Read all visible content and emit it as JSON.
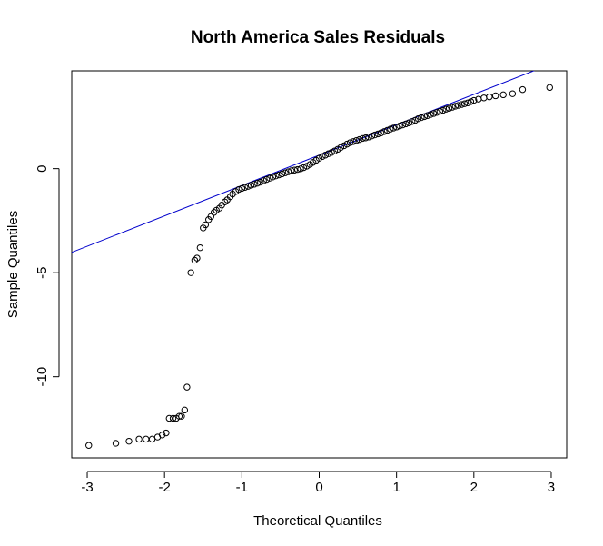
{
  "chart_data": {
    "type": "scatter",
    "title": "North America Sales Residuals",
    "xlabel": "Theoretical Quantiles",
    "ylabel": "Sample Quantiles",
    "xlim": [
      -3.2,
      3.2
    ],
    "ylim": [
      -13.9,
      4.7
    ],
    "x_ticks": [
      -3,
      -2,
      -1,
      0,
      1,
      2,
      3
    ],
    "y_ticks": [
      -10,
      -5,
      0
    ],
    "grid": false,
    "colors": {
      "points": "#000000",
      "reference_line": "#0000cc",
      "frame": "#000000"
    },
    "reference_line": {
      "slope": 1.46,
      "intercept": 0.65
    },
    "series": [
      {
        "values": [
          [
            -2.98,
            -13.3
          ],
          [
            -2.63,
            -13.2
          ],
          [
            -2.46,
            -13.1
          ],
          [
            -2.33,
            -13.0
          ],
          [
            -2.24,
            -13.0
          ],
          [
            -2.16,
            -13.0
          ],
          [
            -2.09,
            -12.9
          ],
          [
            -2.03,
            -12.8
          ],
          [
            -1.98,
            -12.7
          ],
          [
            -1.94,
            -12.0
          ],
          [
            -1.89,
            -12.0
          ],
          [
            -1.85,
            -12.0
          ],
          [
            -1.81,
            -11.9
          ],
          [
            -1.78,
            -11.9
          ],
          [
            -1.74,
            -11.6
          ],
          [
            -1.71,
            -10.5
          ],
          [
            -1.66,
            -5.0
          ],
          [
            -1.61,
            -4.4
          ],
          [
            -1.58,
            -4.3
          ],
          [
            -1.54,
            -3.8
          ],
          [
            -1.5,
            -2.85
          ],
          [
            -1.47,
            -2.7
          ],
          [
            -1.43,
            -2.45
          ],
          [
            -1.4,
            -2.3
          ],
          [
            -1.36,
            -2.1
          ],
          [
            -1.33,
            -2.0
          ],
          [
            -1.29,
            -1.9
          ],
          [
            -1.26,
            -1.75
          ],
          [
            -1.22,
            -1.6
          ],
          [
            -1.19,
            -1.5
          ],
          [
            -1.15,
            -1.35
          ],
          [
            -1.12,
            -1.22
          ],
          [
            -1.08,
            -1.1
          ],
          [
            -1.04,
            -1.0
          ],
          [
            -1.0,
            -0.95
          ],
          [
            -0.96,
            -0.9
          ],
          [
            -0.92,
            -0.85
          ],
          [
            -0.88,
            -0.8
          ],
          [
            -0.84,
            -0.75
          ],
          [
            -0.8,
            -0.7
          ],
          [
            -0.76,
            -0.65
          ],
          [
            -0.72,
            -0.58
          ],
          [
            -0.68,
            -0.52
          ],
          [
            -0.64,
            -0.46
          ],
          [
            -0.6,
            -0.4
          ],
          [
            -0.56,
            -0.35
          ],
          [
            -0.52,
            -0.3
          ],
          [
            -0.48,
            -0.25
          ],
          [
            -0.44,
            -0.2
          ],
          [
            -0.4,
            -0.15
          ],
          [
            -0.36,
            -0.1
          ],
          [
            -0.32,
            -0.07
          ],
          [
            -0.28,
            -0.04
          ],
          [
            -0.24,
            -0.01
          ],
          [
            -0.2,
            0.05
          ],
          [
            -0.16,
            0.12
          ],
          [
            -0.12,
            0.2
          ],
          [
            -0.08,
            0.3
          ],
          [
            -0.04,
            0.4
          ],
          [
            0.0,
            0.5
          ],
          [
            0.04,
            0.58
          ],
          [
            0.08,
            0.65
          ],
          [
            0.12,
            0.72
          ],
          [
            0.16,
            0.78
          ],
          [
            0.2,
            0.85
          ],
          [
            0.24,
            0.93
          ],
          [
            0.28,
            1.02
          ],
          [
            0.32,
            1.1
          ],
          [
            0.36,
            1.18
          ],
          [
            0.4,
            1.25
          ],
          [
            0.44,
            1.3
          ],
          [
            0.48,
            1.35
          ],
          [
            0.52,
            1.4
          ],
          [
            0.56,
            1.45
          ],
          [
            0.6,
            1.48
          ],
          [
            0.64,
            1.52
          ],
          [
            0.68,
            1.57
          ],
          [
            0.72,
            1.62
          ],
          [
            0.76,
            1.67
          ],
          [
            0.8,
            1.72
          ],
          [
            0.84,
            1.78
          ],
          [
            0.88,
            1.84
          ],
          [
            0.92,
            1.9
          ],
          [
            0.96,
            1.95
          ],
          [
            1.0,
            2.0
          ],
          [
            1.04,
            2.05
          ],
          [
            1.08,
            2.1
          ],
          [
            1.12,
            2.15
          ],
          [
            1.16,
            2.2
          ],
          [
            1.2,
            2.26
          ],
          [
            1.24,
            2.32
          ],
          [
            1.28,
            2.4
          ],
          [
            1.32,
            2.45
          ],
          [
            1.36,
            2.5
          ],
          [
            1.4,
            2.55
          ],
          [
            1.44,
            2.6
          ],
          [
            1.48,
            2.65
          ],
          [
            1.52,
            2.7
          ],
          [
            1.56,
            2.75
          ],
          [
            1.6,
            2.8
          ],
          [
            1.64,
            2.86
          ],
          [
            1.68,
            2.9
          ],
          [
            1.72,
            2.95
          ],
          [
            1.76,
            3.0
          ],
          [
            1.8,
            3.04
          ],
          [
            1.84,
            3.08
          ],
          [
            1.88,
            3.12
          ],
          [
            1.92,
            3.16
          ],
          [
            1.96,
            3.22
          ],
          [
            2.0,
            3.28
          ],
          [
            2.06,
            3.34
          ],
          [
            2.13,
            3.4
          ],
          [
            2.2,
            3.45
          ],
          [
            2.28,
            3.5
          ],
          [
            2.38,
            3.55
          ],
          [
            2.5,
            3.6
          ],
          [
            2.63,
            3.8
          ],
          [
            2.98,
            3.9
          ]
        ]
      }
    ]
  }
}
